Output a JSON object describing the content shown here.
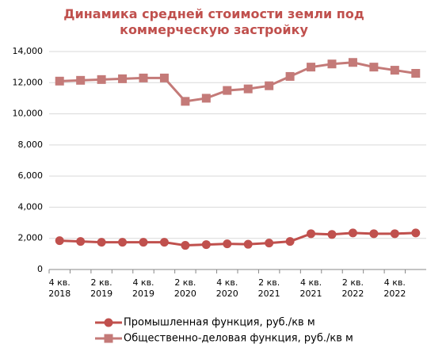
{
  "chart_data": {
    "type": "line",
    "title": "Динамика средней стоимости земли под коммерческую застройку",
    "categories": [
      "4 кв. 2018",
      null,
      "2 кв. 2019",
      null,
      "4 кв. 2019",
      null,
      "2 кв. 2020",
      null,
      "4 кв. 2020",
      null,
      "2 кв. 2021",
      null,
      "4 кв. 2021",
      null,
      "2 кв. 2022",
      null,
      "4 кв. 2022",
      null
    ],
    "series": [
      {
        "name": "Промышленная функция, руб./кв м",
        "color": "#c0504d",
        "marker": "circle",
        "values": [
          1850,
          1800,
          1750,
          1750,
          1750,
          1750,
          1550,
          1600,
          1650,
          1620,
          1700,
          1800,
          2300,
          2250,
          2350,
          2300,
          2300,
          2350
        ]
      },
      {
        "name": "Общественно-деловая функция, руб./кв м",
        "color": "#c47a78",
        "marker": "square",
        "values": [
          12100,
          12150,
          12200,
          12250,
          12300,
          12300,
          10800,
          11000,
          11500,
          11600,
          11800,
          12400,
          13000,
          13200,
          13300,
          13000,
          12800,
          12600
        ]
      }
    ],
    "ylim": [
      0,
      14000
    ],
    "yticks": [
      0,
      {
        "value": 2000,
        "label": "2,000"
      },
      {
        "value": 4000,
        "label": "4,000"
      },
      {
        "value": 6000,
        "label": "6,000"
      },
      {
        "value": 8000,
        "label": "8,000"
      },
      {
        "value": 10000,
        "label": "10,000"
      },
      {
        "value": 12000,
        "label": "12,000"
      },
      {
        "value": 14000,
        "label": "14,000"
      }
    ],
    "grid": true,
    "legend": "bottom"
  }
}
